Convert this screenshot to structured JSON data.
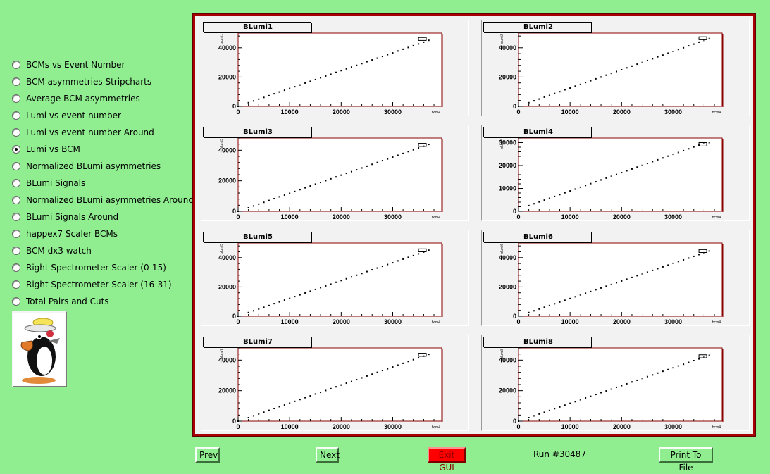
{
  "menu": {
    "items": [
      {
        "label": "BCMs vs Event Number",
        "selected": false
      },
      {
        "label": "BCM asymmetries Stripcharts",
        "selected": false
      },
      {
        "label": "Average BCM asymmetries",
        "selected": false
      },
      {
        "label": "Lumi vs event number",
        "selected": false
      },
      {
        "label": "Lumi vs event number Around",
        "selected": false
      },
      {
        "label": "Lumi vs BCM",
        "selected": true
      },
      {
        "label": "Normalized BLumi asymmetries",
        "selected": false
      },
      {
        "label": "BLumi Signals",
        "selected": false
      },
      {
        "label": "Normalized BLumi asymmetries Around",
        "selected": false
      },
      {
        "label": "BLumi Signals Around",
        "selected": false
      },
      {
        "label": "happex7 Scaler BCMs",
        "selected": false
      },
      {
        "label": "BCM dx3 watch",
        "selected": false
      },
      {
        "label": "Right Spectrometer Scaler (0-15)",
        "selected": false
      },
      {
        "label": "Right Spectrometer Scaler (16-31)",
        "selected": false
      },
      {
        "label": "Total Pairs and Cuts",
        "selected": false
      }
    ]
  },
  "logo": {
    "icon": "penguin-mascot-icon"
  },
  "buttons": {
    "prev": "Prev",
    "next": "Next",
    "exit": "Exit GUI",
    "print": "Print To File"
  },
  "run": {
    "label": "Run #30487"
  },
  "colors": {
    "background": "#90ee90",
    "canvas_border": "#a80000",
    "plot_frame": "#8b0000",
    "exit_button": "#ff0000"
  },
  "chart_data": [
    {
      "type": "scatter",
      "title": "BLumi1",
      "xlabel": "bcm4",
      "ylabel": "blumi1",
      "xlim": [
        0,
        39500
      ],
      "ylim": [
        0,
        50000
      ],
      "xticks": [
        0,
        10000,
        20000,
        30000
      ],
      "yticks": [
        0,
        20000,
        40000
      ],
      "x": [
        0,
        2000,
        3000,
        4000,
        5000,
        6000,
        7000,
        8000,
        9000,
        10000,
        11000,
        12000,
        13000,
        14000,
        15000,
        16000,
        17000,
        18000,
        19000,
        20000,
        21000,
        22000,
        23000,
        24000,
        25000,
        26000,
        27000,
        28000,
        29000,
        30000,
        31000,
        32000,
        33000,
        34000,
        35000,
        36000,
        37000
      ],
      "y": [
        0,
        2500,
        3700,
        4900,
        6100,
        7300,
        8600,
        9800,
        11000,
        12200,
        13400,
        14600,
        15900,
        17100,
        18300,
        19500,
        20700,
        21900,
        23200,
        24400,
        25600,
        26800,
        28000,
        29200,
        30500,
        31700,
        32900,
        34100,
        35300,
        36500,
        37800,
        39000,
        40200,
        41400,
        42600,
        43800,
        45100
      ],
      "box": {
        "x": [
          35000,
          36500
        ],
        "y": [
          45000,
          47000
        ]
      }
    },
    {
      "type": "scatter",
      "title": "BLumi2",
      "xlabel": "bcm4",
      "ylabel": "blumi2",
      "xlim": [
        0,
        39500
      ],
      "ylim": [
        0,
        50000
      ],
      "xticks": [
        0,
        10000,
        20000,
        30000
      ],
      "yticks": [
        0,
        20000,
        40000
      ],
      "x": [
        0,
        2000,
        3000,
        4000,
        5000,
        6000,
        7000,
        8000,
        9000,
        10000,
        11000,
        12000,
        13000,
        14000,
        15000,
        16000,
        17000,
        18000,
        19000,
        20000,
        21000,
        22000,
        23000,
        24000,
        25000,
        26000,
        27000,
        28000,
        29000,
        30000,
        31000,
        32000,
        33000,
        34000,
        35000,
        36000,
        37000
      ],
      "y": [
        0,
        2500,
        3800,
        5000,
        6300,
        7500,
        8800,
        10000,
        11300,
        12500,
        13800,
        15000,
        16300,
        17500,
        18800,
        20000,
        21300,
        22500,
        23800,
        25000,
        26300,
        27500,
        28800,
        30000,
        31300,
        32500,
        33800,
        35000,
        36300,
        37500,
        38800,
        40000,
        41300,
        42500,
        43800,
        45000,
        46300
      ],
      "box": {
        "x": [
          35000,
          36500
        ],
        "y": [
          45500,
          47500
        ]
      }
    },
    {
      "type": "scatter",
      "title": "BLumi3",
      "xlabel": "bcm4",
      "ylabel": "blumi3",
      "xlim": [
        0,
        39500
      ],
      "ylim": [
        0,
        48000
      ],
      "xticks": [
        0,
        10000,
        20000,
        30000
      ],
      "yticks": [
        0,
        20000,
        40000
      ],
      "x": [
        0,
        2000,
        3000,
        4000,
        5000,
        6000,
        7000,
        8000,
        9000,
        10000,
        11000,
        12000,
        13000,
        14000,
        15000,
        16000,
        17000,
        18000,
        19000,
        20000,
        21000,
        22000,
        23000,
        24000,
        25000,
        26000,
        27000,
        28000,
        29000,
        30000,
        31000,
        32000,
        33000,
        34000,
        35000,
        36000,
        37000
      ],
      "y": [
        0,
        2300,
        3500,
        4700,
        5900,
        7100,
        8300,
        9500,
        10600,
        11800,
        13000,
        14200,
        15400,
        16600,
        17800,
        18900,
        20100,
        21300,
        22500,
        23700,
        24900,
        26000,
        27200,
        28400,
        29600,
        30800,
        32000,
        33200,
        34300,
        35500,
        36700,
        37900,
        39100,
        40300,
        41500,
        42600,
        43800
      ],
      "box": {
        "x": [
          35000,
          36500
        ],
        "y": [
          42500,
          44500
        ]
      }
    },
    {
      "type": "scatter",
      "title": "BLumi4",
      "xlabel": "bcm4",
      "ylabel": "blumi4",
      "xlim": [
        0,
        39500
      ],
      "ylim": [
        0,
        32000
      ],
      "xticks": [
        0,
        10000,
        20000,
        30000
      ],
      "yticks": [
        0,
        10000,
        20000,
        30000
      ],
      "x": [
        2000,
        3000,
        4000,
        5000,
        6000,
        7000,
        8000,
        9000,
        10000,
        11000,
        12000,
        13000,
        14000,
        15000,
        16000,
        17000,
        18000,
        19000,
        20000,
        21000,
        22000,
        23000,
        24000,
        25000,
        26000,
        27000,
        28000,
        29000,
        30000,
        31000,
        32000,
        33000,
        34000,
        35000,
        36000,
        37000
      ],
      "y": [
        2500,
        3300,
        4100,
        4900,
        5700,
        6500,
        7300,
        8100,
        8900,
        9700,
        10500,
        11300,
        12100,
        12900,
        13700,
        14500,
        15300,
        16100,
        16900,
        17700,
        18500,
        19300,
        20100,
        20900,
        21700,
        22500,
        23300,
        24100,
        24900,
        25700,
        26500,
        27300,
        28100,
        28900,
        29700,
        30000
      ],
      "box": {
        "x": [
          35000,
          36500
        ],
        "y": [
          28500,
          30000
        ]
      }
    },
    {
      "type": "scatter",
      "title": "BLumi5",
      "xlabel": "bcm4",
      "ylabel": "blumi5",
      "xlim": [
        0,
        39500
      ],
      "ylim": [
        0,
        50000
      ],
      "xticks": [
        0,
        10000,
        20000,
        30000
      ],
      "yticks": [
        0,
        20000,
        40000
      ],
      "x": [
        0,
        2000,
        3000,
        4000,
        5000,
        6000,
        7000,
        8000,
        9000,
        10000,
        11000,
        12000,
        13000,
        14000,
        15000,
        16000,
        17000,
        18000,
        19000,
        20000,
        21000,
        22000,
        23000,
        24000,
        25000,
        26000,
        27000,
        28000,
        29000,
        30000,
        31000,
        32000,
        33000,
        34000,
        35000,
        36000,
        37000
      ],
      "y": [
        0,
        2500,
        3700,
        4900,
        6100,
        7300,
        8600,
        9800,
        11000,
        12200,
        13400,
        14600,
        15900,
        17100,
        18300,
        19500,
        20700,
        21900,
        23200,
        24400,
        25600,
        26800,
        28000,
        29200,
        30500,
        31700,
        32900,
        34100,
        35300,
        36500,
        37800,
        39000,
        40200,
        41400,
        42600,
        43800,
        45100
      ],
      "box": {
        "x": [
          35000,
          36500
        ],
        "y": [
          44000,
          46000
        ]
      }
    },
    {
      "type": "scatter",
      "title": "BLumi6",
      "xlabel": "bcm4",
      "ylabel": "blumi6",
      "xlim": [
        0,
        39500
      ],
      "ylim": [
        0,
        50000
      ],
      "xticks": [
        0,
        10000,
        20000,
        30000
      ],
      "yticks": [
        0,
        20000,
        40000
      ],
      "x": [
        2000,
        3000,
        4000,
        5000,
        6000,
        7000,
        8000,
        9000,
        10000,
        11000,
        12000,
        13000,
        14000,
        15000,
        16000,
        17000,
        18000,
        19000,
        20000,
        21000,
        22000,
        23000,
        24000,
        25000,
        26000,
        27000,
        28000,
        29000,
        30000,
        31000,
        32000,
        33000,
        34000,
        35000,
        36000,
        37000
      ],
      "y": [
        2500,
        3700,
        4900,
        6100,
        7300,
        8500,
        9700,
        10900,
        12100,
        13300,
        14500,
        15700,
        16900,
        18100,
        19300,
        20500,
        21700,
        22900,
        24100,
        25300,
        26500,
        27700,
        28900,
        30100,
        31300,
        32500,
        33700,
        34900,
        36100,
        37300,
        38500,
        39700,
        40900,
        42100,
        43300,
        44500
      ],
      "box": {
        "x": [
          35000,
          36500
        ],
        "y": [
          43500,
          45500
        ]
      }
    },
    {
      "type": "scatter",
      "title": "BLumi7",
      "xlabel": "bcm4",
      "ylabel": "blumi7",
      "xlim": [
        0,
        39500
      ],
      "ylim": [
        0,
        48000
      ],
      "xticks": [
        0,
        10000,
        20000,
        30000
      ],
      "yticks": [
        0,
        20000,
        40000
      ],
      "x": [
        0,
        2000,
        3000,
        4000,
        5000,
        6000,
        7000,
        8000,
        9000,
        10000,
        11000,
        12000,
        13000,
        14000,
        15000,
        16000,
        17000,
        18000,
        19000,
        20000,
        21000,
        22000,
        23000,
        24000,
        25000,
        26000,
        27000,
        28000,
        29000,
        30000,
        31000,
        32000,
        33000,
        34000,
        35000,
        36000,
        37000
      ],
      "y": [
        0,
        2300,
        3500,
        4700,
        5900,
        7100,
        8300,
        9500,
        10600,
        11800,
        13000,
        14200,
        15400,
        16600,
        17800,
        18900,
        20100,
        21300,
        22500,
        23700,
        24900,
        26000,
        27200,
        28400,
        29600,
        30800,
        32000,
        33200,
        34300,
        35500,
        36700,
        37900,
        39100,
        40300,
        41500,
        42600,
        43800
      ],
      "box": {
        "x": [
          35000,
          36500
        ],
        "y": [
          42500,
          44500
        ]
      }
    },
    {
      "type": "scatter",
      "title": "BLumi8",
      "xlabel": "bcm4",
      "ylabel": "blumi8",
      "xlim": [
        0,
        39500
      ],
      "ylim": [
        0,
        48000
      ],
      "xticks": [
        0,
        10000,
        20000,
        30000
      ],
      "yticks": [
        0,
        20000,
        40000
      ],
      "x": [
        0,
        2000,
        3000,
        4000,
        5000,
        6000,
        7000,
        8000,
        9000,
        10000,
        11000,
        12000,
        13000,
        14000,
        15000,
        16000,
        17000,
        18000,
        19000,
        20000,
        21000,
        22000,
        23000,
        24000,
        25000,
        26000,
        27000,
        28000,
        29000,
        30000,
        31000,
        32000,
        33000,
        34000,
        35000,
        36000,
        37000
      ],
      "y": [
        0,
        2300,
        3500,
        4700,
        5800,
        7000,
        8200,
        9300,
        10500,
        11700,
        12800,
        14000,
        15200,
        16300,
        17500,
        18700,
        19800,
        21000,
        22200,
        23300,
        24500,
        25700,
        26800,
        28000,
        29200,
        30300,
        31500,
        32700,
        33800,
        35000,
        36200,
        37300,
        38500,
        39700,
        40800,
        42000,
        43200
      ],
      "box": {
        "x": [
          35000,
          36500
        ],
        "y": [
          41500,
          43500
        ]
      }
    }
  ]
}
